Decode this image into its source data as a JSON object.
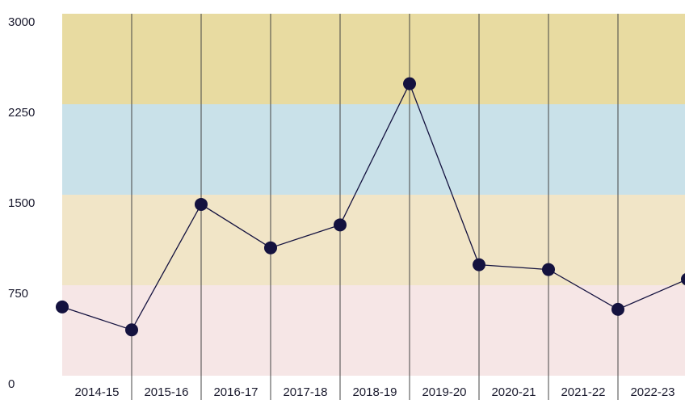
{
  "chart_data": {
    "type": "line",
    "categories": [
      "2014-15",
      "2015-16",
      "2016-17",
      "2017-18",
      "2018-19",
      "2019-20",
      "2020-21",
      "2021-22",
      "2022-23",
      null
    ],
    "series": [
      {
        "color": "#14123f",
        "values": [
          570,
          380,
          1420,
          1060,
          1250,
          2420,
          920,
          880,
          550,
          800
        ]
      }
    ],
    "ylim": [
      0,
      3000
    ],
    "yticks": [
      0,
      750,
      1500,
      2250,
      3000
    ],
    "bands": [
      {
        "from": 0,
        "to": 750,
        "color": "#f6e6e6"
      },
      {
        "from": 750,
        "to": 1500,
        "color": "#f1e5c7"
      },
      {
        "from": 1500,
        "to": 2250,
        "color": "#c9e1e9"
      },
      {
        "from": 2250,
        "to": 3000,
        "color": "#e8dba1"
      }
    ],
    "vertical_lines": true
  }
}
